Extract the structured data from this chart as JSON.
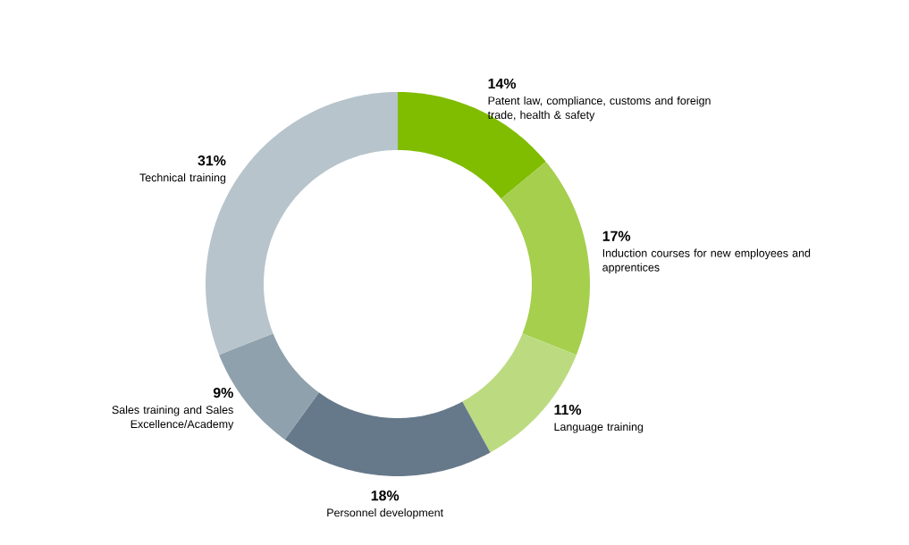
{
  "chart_data": {
    "type": "donut",
    "categories": [
      "Patent law, compliance, customs and foreign trade, health & safety",
      "Induction courses for new employees and apprentices",
      "Language training",
      "Personnel development",
      "Sales training and Sales Excellence/Academy",
      "Technical training"
    ],
    "values": [
      14,
      17,
      11,
      18,
      9,
      31
    ],
    "value_labels": [
      "14%",
      "17%",
      "11%",
      "18%",
      "9%",
      "31%"
    ],
    "colors": [
      "#80bc00",
      "#a5cf4c",
      "#bcdb80",
      "#66798a",
      "#8fa1ac",
      "#b7c4cb"
    ]
  }
}
